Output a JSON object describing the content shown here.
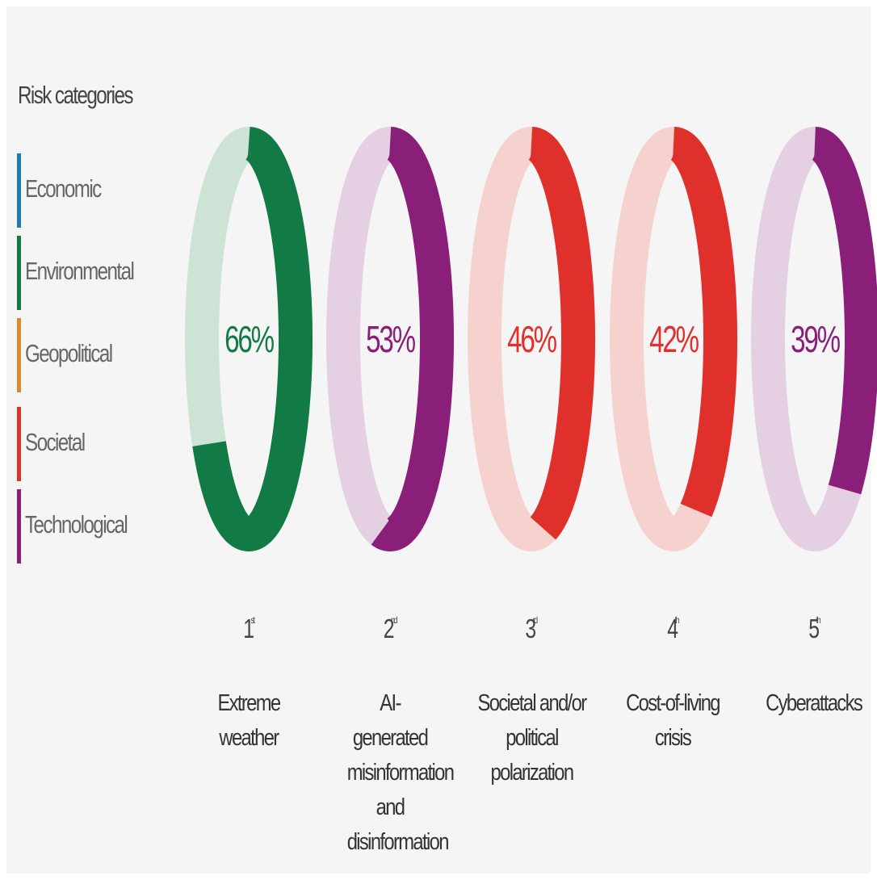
{
  "legend": {
    "title": "Risk categories",
    "items": [
      {
        "label": "Economic",
        "color": "#1f78b4"
      },
      {
        "label": "Environmental",
        "color": "#127a45"
      },
      {
        "label": "Geopolitical",
        "color": "#e08a2c"
      },
      {
        "label": "Societal",
        "color": "#e0302c"
      },
      {
        "label": "Technological",
        "color": "#8a1f7a"
      }
    ]
  },
  "chart_data": {
    "type": "pie",
    "series": [
      {
        "rank": "1",
        "rank_suffix": "st",
        "name": "Extreme weather",
        "value": 66,
        "label": "66%",
        "category": "Environmental",
        "color": "#127a45",
        "track": "#cde3d6"
      },
      {
        "rank": "2",
        "rank_suffix": "nd",
        "name": "AI-generated misinformation and disinformation",
        "value": 53,
        "label": "53%",
        "category": "Technological",
        "color": "#8a1f7a",
        "track": "#e4d0e2"
      },
      {
        "rank": "3",
        "rank_suffix": "rd",
        "name": "Societal and/or political polarization",
        "value": 46,
        "label": "46%",
        "category": "Societal",
        "color": "#e0302c",
        "track": "#f6d2cf"
      },
      {
        "rank": "4",
        "rank_suffix": "th",
        "name": "Cost-of-living crisis",
        "value": 42,
        "label": "42%",
        "category": "Societal",
        "color": "#e0302c",
        "track": "#f6d2cf"
      },
      {
        "rank": "5",
        "rank_suffix": "th",
        "name": "Cyberattacks",
        "value": 39,
        "label": "39%",
        "category": "Technological",
        "color": "#8a1f7a",
        "track": "#e4d0e2"
      }
    ]
  }
}
